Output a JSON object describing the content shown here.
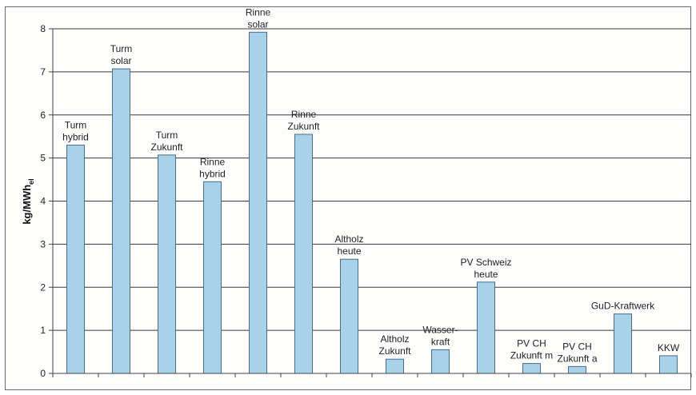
{
  "chart_data": {
    "type": "bar",
    "ylabel": "kg/MWh",
    "ylabel_subscript": "el",
    "ylim": [
      0,
      8
    ],
    "yticks": [
      "0",
      "1",
      "2",
      "3",
      "4",
      "5",
      "6",
      "7",
      "8"
    ],
    "grid": true,
    "bar_color": "#a8d2ea",
    "bar_stroke": "#4a6c85",
    "categories": [
      [
        "Turm",
        "hybrid"
      ],
      [
        "Turm",
        "solar"
      ],
      [
        "Turm",
        "Zukunft"
      ],
      [
        "Rinne",
        "hybrid"
      ],
      [
        "Rinne",
        "solar"
      ],
      [
        "Rinne",
        "Zukunft"
      ],
      [
        "Altholz",
        "heute"
      ],
      [
        "Altholz",
        "Zukunft"
      ],
      [
        "Wasser-",
        "kraft"
      ],
      [
        "PV Schweiz",
        "heute"
      ],
      [
        "PV CH",
        "Zukunft  m"
      ],
      [
        "PV CH",
        "Zukunft  a"
      ],
      [
        "GuD-Kraftwerk"
      ],
      [
        "KKW"
      ]
    ],
    "values": [
      5.3,
      7.07,
      5.07,
      4.45,
      7.92,
      5.55,
      2.65,
      0.33,
      0.55,
      2.12,
      0.23,
      0.16,
      1.38,
      0.41
    ]
  }
}
